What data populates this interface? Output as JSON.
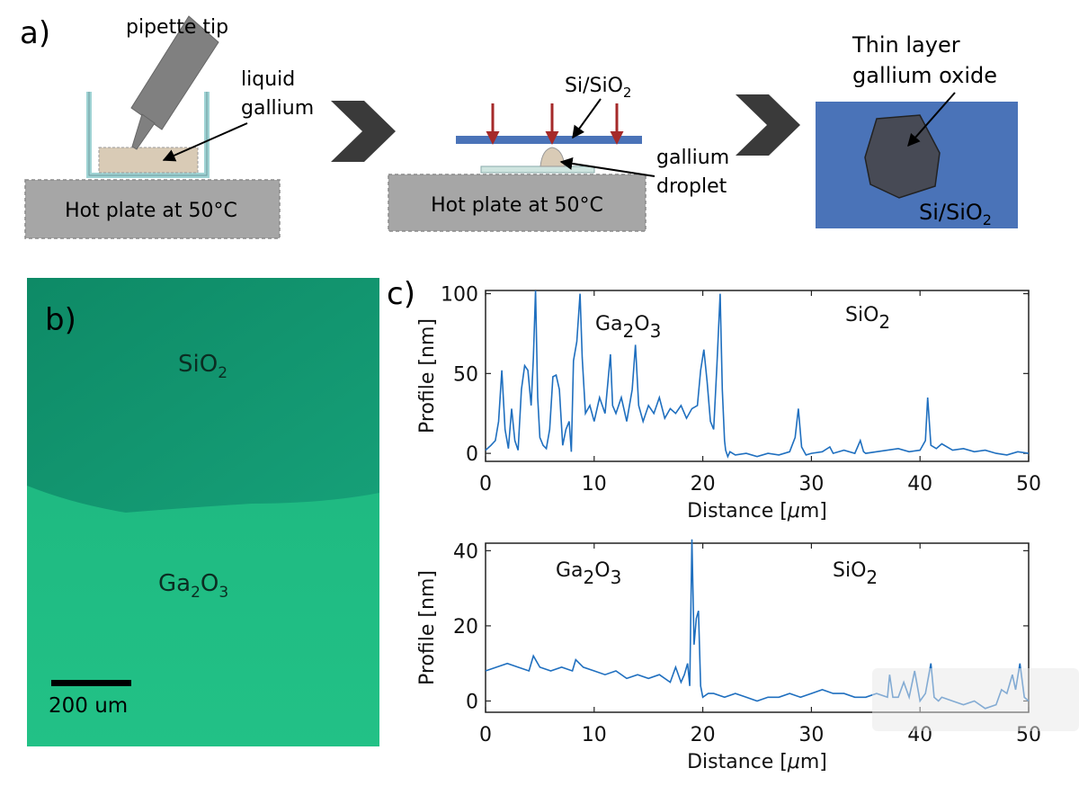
{
  "panel_a": {
    "label": "a)",
    "step1": {
      "tip_label": "pipette tip",
      "gallium_label_line1": "liquid",
      "gallium_label_line2": "gallium",
      "hotplate_label": "Hot plate at 50°C"
    },
    "step2": {
      "substrate_label_base": "Si/SiO",
      "substrate_label_sub": "2",
      "droplet_label_line1": "gallium",
      "droplet_label_line2": "droplet",
      "hotplate_label": "Hot plate at 50°C"
    },
    "step3": {
      "title_line1": "Thin layer",
      "title_line2": "gallium oxide",
      "substrate_label_base": "Si/SiO",
      "substrate_label_sub": "2"
    },
    "colors": {
      "substrate": "#4a73b8",
      "hotplate": "#a6a6a6",
      "arrow": "#c0392b",
      "oxide": "#474a55"
    }
  },
  "panel_b": {
    "label": "b)",
    "region_top_base": "SiO",
    "region_top_sub": "2",
    "region_bottom_base1": "Ga",
    "region_bottom_sub1": "2",
    "region_bottom_base2": "O",
    "region_bottom_sub2": "3",
    "scalebar_label": "200 um",
    "colors": {
      "top": "#149a73",
      "bottom": "#1fbd82"
    }
  },
  "panel_c": {
    "label": "c)",
    "color": "#1f6fbf"
  },
  "chart_data": [
    {
      "type": "line",
      "xlabel_prefix": "Distance [",
      "xlabel_mu": "μ",
      "xlabel_suffix": "m]",
      "ylabel": "Profile [nm]",
      "xlim": [
        0,
        50
      ],
      "ylim": [
        -5,
        102
      ],
      "xticks": [
        "0",
        "10",
        "20",
        "30",
        "40",
        "50"
      ],
      "yticks": [
        "0",
        "50",
        "100"
      ],
      "annotations": [
        {
          "base1": "Ga",
          "sub1": "2",
          "base2": "O",
          "sub2": "3"
        },
        {
          "base1": "SiO",
          "sub1": "2"
        }
      ],
      "series": [
        {
          "x": [
            0,
            0.5,
            0.9,
            1.2,
            1.5,
            1.8,
            2.1,
            2.4,
            2.7,
            3.0,
            3.3,
            3.6,
            3.9,
            4.2,
            4.4,
            4.6,
            4.8,
            5.0,
            5.3,
            5.6,
            5.9,
            6.2,
            6.5,
            6.8,
            7.1,
            7.4,
            7.7,
            7.9,
            8.1,
            8.4,
            8.7,
            8.9,
            9.2,
            9.6,
            10.0,
            10.5,
            11.0,
            11.5,
            11.7,
            12.0,
            12.5,
            13.0,
            13.5,
            13.8,
            14.1,
            14.5,
            15.0,
            15.5,
            16.0,
            16.5,
            17.0,
            17.5,
            18.0,
            18.5,
            19.0,
            19.5,
            19.8,
            20.1,
            20.4,
            20.7,
            21.0,
            21.3,
            21.6,
            21.8,
            22.0,
            22.1,
            22.3,
            22.5,
            23.0,
            24.0,
            25.0,
            26.0,
            27.0,
            28.0,
            28.5,
            28.8,
            29.1,
            29.5,
            30.0,
            31.0,
            31.7,
            32.0,
            33.0,
            34.0,
            34.5,
            34.8,
            35.0,
            36.0,
            37.0,
            38.0,
            39.0,
            40.0,
            40.5,
            40.7,
            41.0,
            41.5,
            42.0,
            43.0,
            44.0,
            45.0,
            46.0,
            47.0,
            48.0,
            49.0,
            50.0
          ],
          "y": [
            2,
            5,
            8,
            20,
            52,
            15,
            3,
            28,
            8,
            2,
            40,
            55,
            52,
            30,
            60,
            102,
            35,
            10,
            5,
            3,
            15,
            48,
            49,
            40,
            5,
            15,
            20,
            1,
            58,
            70,
            100,
            60,
            25,
            30,
            20,
            35,
            25,
            62,
            30,
            25,
            35,
            20,
            40,
            68,
            30,
            20,
            30,
            25,
            35,
            22,
            28,
            25,
            30,
            22,
            28,
            30,
            52,
            65,
            45,
            20,
            15,
            55,
            100,
            40,
            8,
            2,
            -2,
            1,
            -1,
            0,
            -2,
            0,
            -1,
            1,
            10,
            28,
            4,
            -1,
            0,
            1,
            4,
            0,
            2,
            0,
            8,
            1,
            0,
            1,
            2,
            3,
            1,
            2,
            8,
            35,
            5,
            3,
            6,
            2,
            3,
            1,
            2,
            0,
            -1,
            1,
            0
          ]
        }
      ]
    },
    {
      "type": "line",
      "xlabel_prefix": "Distance [",
      "xlabel_mu": "μ",
      "xlabel_suffix": "m]",
      "ylabel": "Profile [nm]",
      "xlim": [
        0,
        50
      ],
      "ylim": [
        -3,
        42
      ],
      "xticks": [
        "0",
        "10",
        "20",
        "30",
        "40",
        "50"
      ],
      "yticks": [
        "0",
        "20",
        "40"
      ],
      "annotations": [
        {
          "base1": "Ga",
          "sub1": "2",
          "base2": "O",
          "sub2": "3"
        },
        {
          "base1": "SiO",
          "sub1": "2"
        }
      ],
      "series": [
        {
          "x": [
            0,
            1,
            2,
            3,
            4,
            4.4,
            5,
            6,
            7,
            8,
            8.3,
            9,
            10,
            11,
            12,
            13,
            14,
            15,
            16,
            17,
            17.5,
            18,
            18.3,
            18.6,
            18.8,
            19.0,
            19.2,
            19.4,
            19.6,
            19.8,
            20.0,
            20.5,
            21,
            22,
            23,
            24,
            25,
            26,
            27,
            28,
            29,
            30,
            31,
            32,
            33,
            34,
            35,
            36,
            37,
            37.2,
            37.5,
            38,
            38.5,
            39,
            39.5,
            40,
            40.5,
            41,
            41.3,
            41.7,
            42,
            43,
            44,
            45,
            46,
            47,
            47.5,
            48,
            48.5,
            48.8,
            49.2,
            49.6,
            50
          ],
          "y": [
            8,
            9,
            10,
            9,
            8,
            12,
            9,
            8,
            9,
            8,
            11,
            9,
            8,
            7,
            8,
            6,
            7,
            6,
            7,
            5,
            9,
            5,
            7,
            10,
            4,
            43,
            15,
            22,
            24,
            4,
            1,
            2,
            2,
            1,
            2,
            1,
            0,
            1,
            1,
            2,
            1,
            2,
            3,
            2,
            2,
            1,
            1,
            2,
            1,
            7,
            1,
            1,
            5,
            1,
            8,
            0,
            2,
            10,
            1,
            0,
            1,
            0,
            -1,
            0,
            -2,
            -1,
            3,
            2,
            7,
            3,
            10,
            1,
            0
          ]
        }
      ]
    }
  ]
}
